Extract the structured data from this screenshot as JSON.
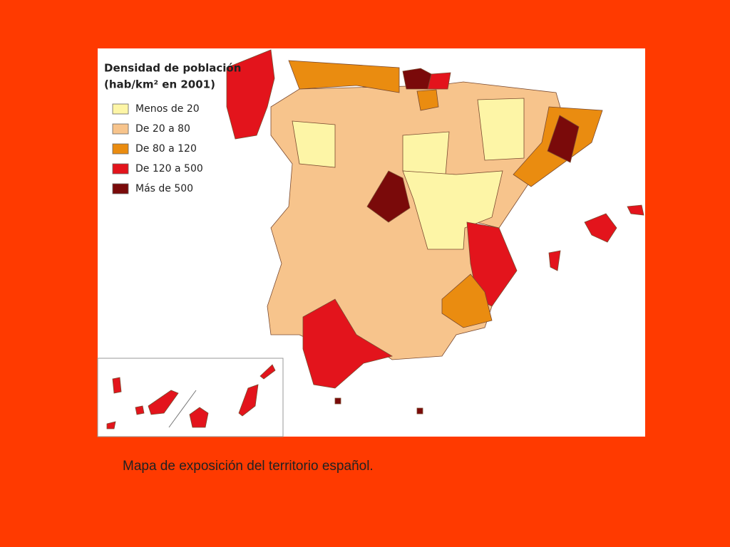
{
  "legend": {
    "title": [
      "Densidad de población",
      "(hab/km² en 2001)"
    ],
    "items": [
      {
        "label": "Menos de 20",
        "color": "#fdf5a6"
      },
      {
        "label": "De 20 a 80",
        "color": "#f7c48c"
      },
      {
        "label": "De 80 a 120",
        "color": "#ea8c10"
      },
      {
        "label": "De 120 a 500",
        "color": "#e3141c"
      },
      {
        "label": "Más de 500",
        "color": "#7a0a0a"
      }
    ]
  },
  "caption": "Mapa de exposición del territorio español."
}
